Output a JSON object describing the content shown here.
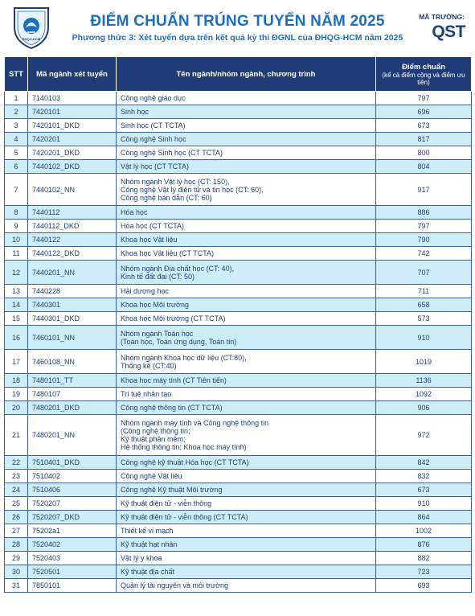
{
  "header": {
    "logo_text": "TRƯỜNG ĐẠI HỌC KHOA HỌC TỰ NHIÊN · ĐHQG-HCM",
    "title": "ĐIỂM CHUẨN TRÚNG TUYỂN NĂM 2025",
    "subtitle": "Phương thức 3: Xét tuyển dựa trên kết quả kỳ thi ĐGNL của ĐHQG-HCM năm 2025",
    "school_code_label": "MÃ TRƯỜNG:",
    "school_code": "QST"
  },
  "table": {
    "headers": {
      "stt": "STT",
      "code": "Mã ngành xét tuyển",
      "name": "Tên ngành/nhóm ngành, chương trình",
      "score": "Điểm chuẩn",
      "score_note": "(kể cả điểm cộng và điểm ưu tiên)"
    },
    "rows": [
      {
        "stt": "1",
        "code": "7140103",
        "name": [
          "Công nghệ giáo dục"
        ],
        "score": "797"
      },
      {
        "stt": "2",
        "code": "7420101",
        "name": [
          "Sinh học"
        ],
        "score": "696"
      },
      {
        "stt": "3",
        "code": "7420101_DKD",
        "name": [
          "Sinh học (CT TCTA)"
        ],
        "score": "673"
      },
      {
        "stt": "4",
        "code": "7420201",
        "name": [
          "Công nghệ Sinh học"
        ],
        "score": "817"
      },
      {
        "stt": "5",
        "code": "7420201_DKD",
        "name": [
          "Công nghệ Sinh học (CT TCTA)"
        ],
        "score": "800"
      },
      {
        "stt": "6",
        "code": "7440102_DKD",
        "name": [
          "Vật lý học (CT TCTA)"
        ],
        "score": "804"
      },
      {
        "stt": "7",
        "code": "7440102_NN",
        "name": [
          "Nhóm ngành Vật lý học (CT: 150),",
          "Công nghệ Vật lý điện tử và tin học (CT: 60),",
          "Công nghệ bán dẫn (CT: 60)"
        ],
        "score": "917"
      },
      {
        "stt": "8",
        "code": "7440112",
        "name": [
          "Hóa học"
        ],
        "score": "886"
      },
      {
        "stt": "9",
        "code": "7440112_DKD",
        "name": [
          "Hóa học (CT TCTA)"
        ],
        "score": "797"
      },
      {
        "stt": "10",
        "code": "7440122",
        "name": [
          "Khoa học Vật liệu"
        ],
        "score": "790"
      },
      {
        "stt": "11",
        "code": "7440122_DKD",
        "name": [
          "Khoa học Vật liệu (CT TCTA)"
        ],
        "score": "742"
      },
      {
        "stt": "12",
        "code": "7440201_NN",
        "name": [
          "Nhóm ngành Địa chất học (CT: 40),",
          "Kinh tế đất đai (CT: 50)"
        ],
        "score": "707"
      },
      {
        "stt": "13",
        "code": "7440228",
        "name": [
          "Hải dương học"
        ],
        "score": "711"
      },
      {
        "stt": "14",
        "code": "7440301",
        "name": [
          "Khoa học Môi trường"
        ],
        "score": "658"
      },
      {
        "stt": "15",
        "code": "7440301_DKD",
        "name": [
          "Khoa học Môi trường (CT TCTA)"
        ],
        "score": "573"
      },
      {
        "stt": "16",
        "code": "7460101_NN",
        "name": [
          "Nhóm ngành Toán học",
          "(Toán học, Toán ứng dụng, Toán tin)"
        ],
        "score": "910"
      },
      {
        "stt": "17",
        "code": "7460108_NN",
        "name": [
          "Nhóm ngành Khoa học dữ liệu (CT:80),",
          "Thống kê (CT:40)"
        ],
        "score": "1019"
      },
      {
        "stt": "18",
        "code": "7480101_TT",
        "name": [
          "Khoa học máy tính (CT Tiên tiến)"
        ],
        "score": "1136"
      },
      {
        "stt": "19",
        "code": "7480107",
        "name": [
          "Trí tuệ nhân tạo"
        ],
        "score": "1092"
      },
      {
        "stt": "20",
        "code": "7480201_DKD",
        "name": [
          "Công nghệ thông tin (CT TCTA)"
        ],
        "score": "906"
      },
      {
        "stt": "21",
        "code": "7480201_NN",
        "name": [
          "Nhóm ngành máy tính và Công nghệ thông tin",
          "(Công nghệ thông tin;",
          "Kỹ thuật phần mềm;",
          "Hệ thống thông tin; Khoa học máy tính)"
        ],
        "score": "972"
      },
      {
        "stt": "22",
        "code": "7510401_DKD",
        "name": [
          "Công nghệ kỹ thuật Hóa học (CT TCTA)"
        ],
        "score": "842"
      },
      {
        "stt": "23",
        "code": "7510402",
        "name": [
          "Công nghệ Vật liệu"
        ],
        "score": "832"
      },
      {
        "stt": "24",
        "code": "7510406",
        "name": [
          "Công nghệ Kỹ thuật Môi trường"
        ],
        "score": "673"
      },
      {
        "stt": "25",
        "code": "7520207",
        "name": [
          "Kỹ thuật điện tử - viễn thông"
        ],
        "score": "910"
      },
      {
        "stt": "26",
        "code": "7520207_DKD",
        "name": [
          "Kỹ thuật điện tử - viễn thông (CT TCTA)"
        ],
        "score": "864"
      },
      {
        "stt": "27",
        "code": "75202a1",
        "name": [
          "Thiết kế vi mạch"
        ],
        "score": "1002"
      },
      {
        "stt": "28",
        "code": "7520402",
        "name": [
          "Kỹ thuật hạt nhân"
        ],
        "score": "876"
      },
      {
        "stt": "29",
        "code": "7520403",
        "name": [
          "Vật lý y khoa"
        ],
        "score": "882"
      },
      {
        "stt": "30",
        "code": "7520501",
        "name": [
          "Kỹ thuật địa chất"
        ],
        "score": "723"
      },
      {
        "stt": "31",
        "code": "7850101",
        "name": [
          "Quản lý tài nguyên và môi trường"
        ],
        "score": "693"
      }
    ]
  },
  "colors": {
    "title": "#1b6fc2",
    "header_bg": "#1f3c78",
    "row_alt": "#cdeef8",
    "text": "#1f3f7a"
  }
}
